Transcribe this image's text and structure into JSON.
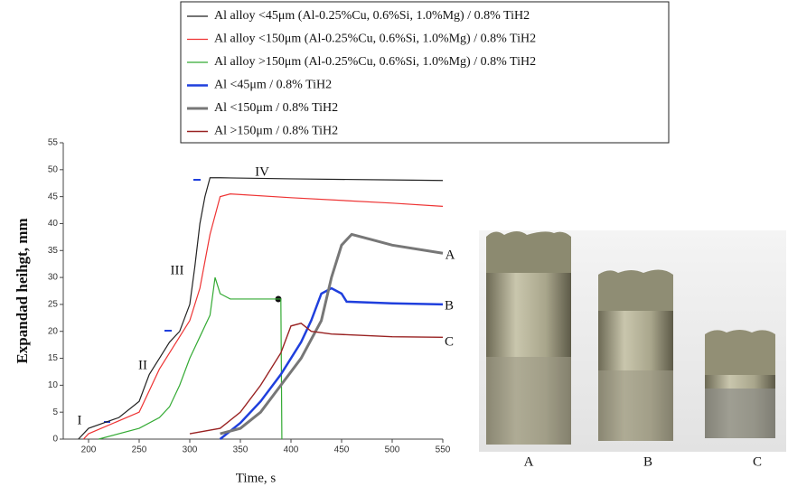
{
  "chart_data": {
    "type": "line",
    "x_label": "Time, s",
    "y_label": "Expandad heihgt, mm",
    "xlim": [
      175,
      550
    ],
    "xticks": [
      200,
      250,
      300,
      350,
      400,
      450,
      500,
      550
    ],
    "ylim": [
      0,
      55
    ],
    "yticks": [
      0,
      5,
      10,
      15,
      20,
      25,
      30,
      35,
      40,
      45,
      50,
      55
    ],
    "series": [
      {
        "name": "Al alloy <45μm (Al-0.25%Cu, 0.6%Si, 1.0%Mg) / 0.8% TiH2",
        "color": "#222222",
        "x": [
          190,
          200,
          230,
          250,
          260,
          270,
          280,
          290,
          300,
          305,
          310,
          315,
          320,
          330,
          400,
          500,
          550
        ],
        "values": [
          0,
          2,
          4,
          7,
          12,
          15,
          18,
          20,
          25,
          32,
          40,
          45,
          48.5,
          48.5,
          48.3,
          48.1,
          48
        ]
      },
      {
        "name": "Al alloy <150μm (Al-0.25%Cu, 0.6%Si, 1.0%Mg) / 0.8% TiH2",
        "color": "#ee3333",
        "x": [
          195,
          200,
          250,
          260,
          270,
          280,
          290,
          300,
          310,
          320,
          330,
          340,
          400,
          500,
          550
        ],
        "values": [
          0,
          1,
          5,
          9,
          13,
          16,
          19,
          22,
          28,
          38,
          45,
          45.5,
          44.8,
          43.8,
          43.2
        ]
      },
      {
        "name": "Al alloy >150μm (Al-0.25%Cu, 0.6%Si, 1.0%Mg) / 0.8% TiH2",
        "color": "#33aa33",
        "x": [
          210,
          250,
          270,
          280,
          290,
          300,
          310,
          320,
          325,
          330,
          340,
          385,
          390,
          391
        ],
        "values": [
          0,
          2,
          4,
          6,
          10,
          15,
          19,
          23,
          30,
          27,
          26,
          26,
          26,
          0
        ]
      },
      {
        "name": "Al <45μm / 0.8% TiH2",
        "color": "#1f3fdd",
        "x": [
          330,
          350,
          370,
          390,
          410,
          420,
          430,
          440,
          450,
          455,
          500,
          550
        ],
        "values": [
          0,
          3,
          7,
          12,
          18,
          22,
          27,
          28,
          27,
          25.5,
          25.2,
          25
        ]
      },
      {
        "name": "Al <150μm / 0.8% TiH2",
        "color": "#777777",
        "x": [
          330,
          350,
          370,
          390,
          410,
          430,
          440,
          450,
          460,
          480,
          500,
          550
        ],
        "values": [
          1,
          2,
          5,
          10,
          15,
          22,
          30,
          36,
          38,
          37,
          36,
          34.5
        ]
      },
      {
        "name": "Al >150μm / 0.8% TiH2",
        "color": "#992222",
        "x": [
          300,
          330,
          350,
          370,
          390,
          400,
          410,
          420,
          440,
          500,
          550
        ],
        "values": [
          1,
          2,
          5,
          10,
          16,
          21,
          21.5,
          20,
          19.5,
          19,
          18.9
        ]
      }
    ],
    "annotations": [
      "I",
      "II",
      "III",
      "IV",
      "A",
      "B",
      "C"
    ]
  },
  "photo": {
    "labels": [
      "A",
      "B",
      "C"
    ]
  }
}
